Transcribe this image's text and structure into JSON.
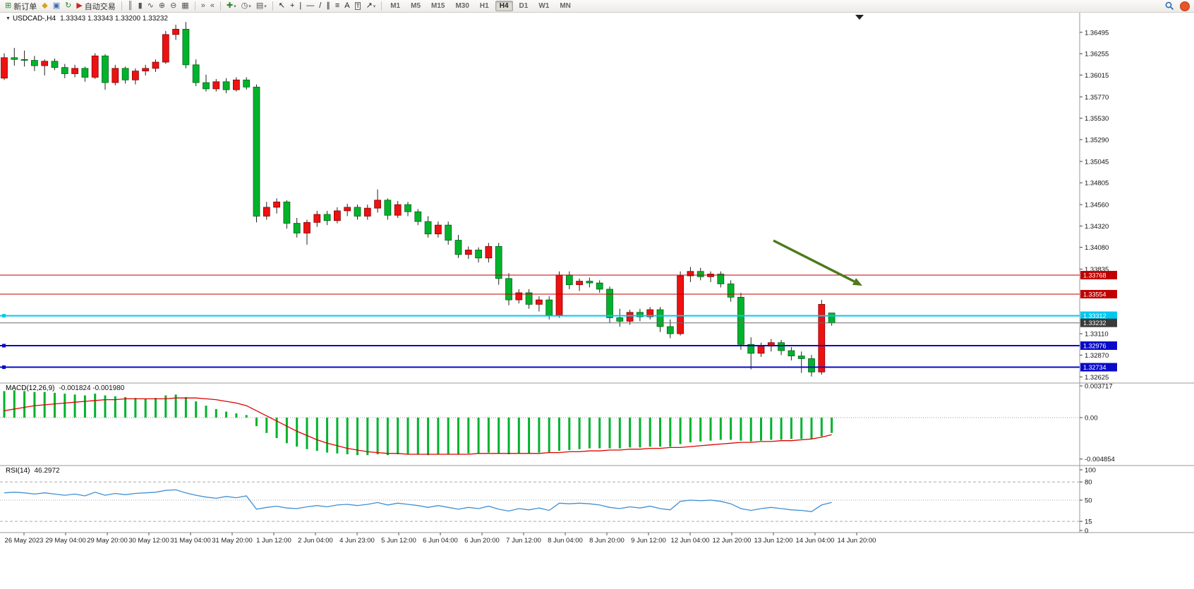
{
  "toolbar": {
    "buttons": [
      {
        "name": "new-order",
        "icon": "new-order-icon",
        "glyph": "⊞",
        "color": "#2e8b2e",
        "label": "新订单"
      },
      {
        "name": "alerts",
        "icon": "megaphone-icon",
        "glyph": "◆",
        "color": "#d9a21b"
      },
      {
        "name": "market-watch",
        "icon": "market-icon",
        "glyph": "▣",
        "color": "#3b6fb5"
      },
      {
        "name": "refresh",
        "icon": "refresh-icon",
        "glyph": "↻",
        "color": "#2e8b2e"
      },
      {
        "name": "autotrading",
        "icon": "autotrading-icon",
        "glyph": "▶",
        "color": "#c42b1c",
        "label": "自动交易",
        "sep_after": true
      },
      {
        "name": "chart-bars",
        "icon": "bars-chart-icon",
        "glyph": "║",
        "color": "#555"
      },
      {
        "name": "chart-candles",
        "icon": "candles-chart-icon",
        "glyph": "▮",
        "color": "#555"
      },
      {
        "name": "chart-line",
        "icon": "line-chart-icon",
        "glyph": "∿",
        "color": "#555"
      },
      {
        "name": "zoom-in",
        "icon": "zoom-in-icon",
        "glyph": "⊕",
        "color": "#555"
      },
      {
        "name": "zoom-out",
        "icon": "zoom-out-icon",
        "glyph": "⊖",
        "color": "#555"
      },
      {
        "name": "tile-windows",
        "icon": "tile-windows-icon",
        "glyph": "▦",
        "color": "#555",
        "sep_after": true
      },
      {
        "name": "auto-scroll",
        "icon": "auto-scroll-icon",
        "glyph": "»",
        "color": "#555"
      },
      {
        "name": "chart-shift",
        "icon": "chart-shift-icon",
        "glyph": "«",
        "color": "#555",
        "sep_after": true
      },
      {
        "name": "indicators",
        "icon": "add-indicator-icon",
        "glyph": "✚",
        "color": "#2e8b2e",
        "dropdown": true
      },
      {
        "name": "periods",
        "icon": "clock-icon",
        "glyph": "◷",
        "color": "#555",
        "dropdown": true
      },
      {
        "name": "templates",
        "icon": "template-icon",
        "glyph": "▤",
        "color": "#555",
        "dropdown": true,
        "sep_after": true
      },
      {
        "name": "cursor",
        "icon": "cursor-icon",
        "glyph": "↖",
        "color": "#222"
      },
      {
        "name": "crosshair",
        "icon": "crosshair-icon",
        "glyph": "+",
        "color": "#222"
      },
      {
        "name": "vertical-line",
        "icon": "vertical-line-icon",
        "glyph": "|",
        "color": "#222"
      },
      {
        "name": "horizontal-line",
        "icon": "horizontal-line-icon",
        "glyph": "—",
        "color": "#222"
      },
      {
        "name": "trendline",
        "icon": "trendline-icon",
        "glyph": "/",
        "color": "#222"
      },
      {
        "name": "channel",
        "icon": "channel-icon",
        "glyph": "∥",
        "color": "#222"
      },
      {
        "name": "fibonacci",
        "icon": "fibonacci-icon",
        "glyph": "≡",
        "color": "#222"
      },
      {
        "name": "text",
        "icon": "text-icon",
        "glyph": "A",
        "color": "#222"
      },
      {
        "name": "text-label",
        "icon": "label-icon",
        "glyph": "T",
        "color": "#222",
        "boxed": true
      },
      {
        "name": "arrows",
        "icon": "arrow-objects-icon",
        "glyph": "↗",
        "color": "#222",
        "dropdown": true,
        "sep_after": true
      }
    ]
  },
  "timeframes": {
    "items": [
      "M1",
      "M5",
      "M15",
      "M30",
      "H1",
      "H4",
      "D1",
      "W1",
      "MN"
    ],
    "active": "H4"
  },
  "main_chart": {
    "collapse_icon": "▼",
    "title": "USDCAD-,H4",
    "ohlc_text": "1.33343 1.33343 1.33200 1.33232"
  },
  "macd_panel": {
    "label": "MACD(12,26,9)",
    "values": "-0.001824 -0.001980"
  },
  "rsi_panel": {
    "label": "RSI(14)",
    "value": "46.2972"
  },
  "chart_data": [
    {
      "type": "candlestick",
      "symbol": "USDCAD",
      "timeframe": "H4",
      "title": "USDCAD-,H4 1.33343 1.33343 1.33200 1.33232",
      "bull_color": "#ee1111",
      "bear_color": "#00b32c",
      "wick_color": "#222222",
      "y_range": [
        1.3258,
        1.3662
      ],
      "ohlc": [
        [
          1.3598,
          1.3626,
          1.3596,
          1.3621
        ],
        [
          1.3621,
          1.3632,
          1.3612,
          1.3619
        ],
        [
          1.3619,
          1.3629,
          1.3611,
          1.3618
        ],
        [
          1.3618,
          1.3623,
          1.3606,
          1.3612
        ],
        [
          1.3612,
          1.3619,
          1.3601,
          1.3617
        ],
        [
          1.3617,
          1.362,
          1.3607,
          1.361
        ],
        [
          1.361,
          1.3614,
          1.3598,
          1.3603
        ],
        [
          1.3603,
          1.3613,
          1.3599,
          1.3609
        ],
        [
          1.3609,
          1.3611,
          1.3594,
          1.3599
        ],
        [
          1.3599,
          1.3626,
          1.3597,
          1.3623
        ],
        [
          1.3623,
          1.3625,
          1.3585,
          1.3593
        ],
        [
          1.3593,
          1.3613,
          1.359,
          1.3609
        ],
        [
          1.3609,
          1.3611,
          1.3592,
          1.3596
        ],
        [
          1.3596,
          1.3609,
          1.3591,
          1.3606
        ],
        [
          1.3606,
          1.3613,
          1.3601,
          1.3609
        ],
        [
          1.3609,
          1.3619,
          1.3605,
          1.3616
        ],
        [
          1.3616,
          1.3651,
          1.3614,
          1.3647
        ],
        [
          1.3647,
          1.3658,
          1.3641,
          1.3653
        ],
        [
          1.3653,
          1.3661,
          1.3609,
          1.3613
        ],
        [
          1.3613,
          1.3619,
          1.3589,
          1.3593
        ],
        [
          1.3593,
          1.3602,
          1.3583,
          1.3586
        ],
        [
          1.3586,
          1.3597,
          1.3583,
          1.3594
        ],
        [
          1.3594,
          1.3598,
          1.3581,
          1.3585
        ],
        [
          1.3585,
          1.3599,
          1.3583,
          1.3596
        ],
        [
          1.3596,
          1.3599,
          1.3585,
          1.3588
        ],
        [
          1.3588,
          1.3591,
          1.3436,
          1.3443
        ],
        [
          1.3443,
          1.3459,
          1.3439,
          1.3453
        ],
        [
          1.3453,
          1.3463,
          1.3446,
          1.3459
        ],
        [
          1.3459,
          1.3461,
          1.3429,
          1.3435
        ],
        [
          1.3435,
          1.3441,
          1.3419,
          1.3424
        ],
        [
          1.3424,
          1.3439,
          1.3411,
          1.3436
        ],
        [
          1.3436,
          1.3449,
          1.3431,
          1.3445
        ],
        [
          1.3445,
          1.3449,
          1.3433,
          1.3438
        ],
        [
          1.3438,
          1.3453,
          1.3435,
          1.3449
        ],
        [
          1.3449,
          1.3457,
          1.3443,
          1.3453
        ],
        [
          1.3453,
          1.3456,
          1.3439,
          1.3443
        ],
        [
          1.3443,
          1.3456,
          1.3439,
          1.3452
        ],
        [
          1.3452,
          1.3473,
          1.3447,
          1.3461
        ],
        [
          1.3461,
          1.3463,
          1.3439,
          1.3444
        ],
        [
          1.3444,
          1.346,
          1.3441,
          1.3456
        ],
        [
          1.3456,
          1.3459,
          1.3443,
          1.3448
        ],
        [
          1.3448,
          1.3451,
          1.3433,
          1.3437
        ],
        [
          1.3437,
          1.3443,
          1.3419,
          1.3423
        ],
        [
          1.3423,
          1.3437,
          1.3419,
          1.3433
        ],
        [
          1.3433,
          1.3437,
          1.3411,
          1.3416
        ],
        [
          1.3416,
          1.3422,
          1.3396,
          1.34
        ],
        [
          1.34,
          1.3409,
          1.3395,
          1.3405
        ],
        [
          1.3405,
          1.3408,
          1.3391,
          1.3396
        ],
        [
          1.3396,
          1.3413,
          1.3391,
          1.3409
        ],
        [
          1.3409,
          1.3413,
          1.3366,
          1.3373
        ],
        [
          1.3373,
          1.3379,
          1.3343,
          1.3349
        ],
        [
          1.3349,
          1.3361,
          1.3345,
          1.3357
        ],
        [
          1.3357,
          1.3361,
          1.3339,
          1.3344
        ],
        [
          1.3344,
          1.3353,
          1.3336,
          1.3349
        ],
        [
          1.3349,
          1.3353,
          1.3327,
          1.3332
        ],
        [
          1.3332,
          1.3381,
          1.3329,
          1.3377
        ],
        [
          1.3377,
          1.3381,
          1.3361,
          1.3366
        ],
        [
          1.3366,
          1.3373,
          1.3359,
          1.337
        ],
        [
          1.337,
          1.3374,
          1.3363,
          1.3368
        ],
        [
          1.3368,
          1.3371,
          1.3357,
          1.3361
        ],
        [
          1.3361,
          1.3364,
          1.3323,
          1.3329
        ],
        [
          1.3329,
          1.3339,
          1.3319,
          1.3325
        ],
        [
          1.3325,
          1.3338,
          1.3321,
          1.3335
        ],
        [
          1.3335,
          1.3339,
          1.3325,
          1.333
        ],
        [
          1.333,
          1.3341,
          1.3327,
          1.3338
        ],
        [
          1.3338,
          1.3341,
          1.3313,
          1.3319
        ],
        [
          1.3319,
          1.3327,
          1.3306,
          1.3311
        ],
        [
          1.3311,
          1.3381,
          1.3309,
          1.3376
        ],
        [
          1.3376,
          1.3386,
          1.3369,
          1.3381
        ],
        [
          1.3381,
          1.3385,
          1.3371,
          1.3375
        ],
        [
          1.3375,
          1.3381,
          1.3369,
          1.3378
        ],
        [
          1.3378,
          1.3381,
          1.3363,
          1.3367
        ],
        [
          1.3367,
          1.3371,
          1.3347,
          1.3352
        ],
        [
          1.3352,
          1.3357,
          1.3293,
          1.3299
        ],
        [
          1.3299,
          1.3307,
          1.3271,
          1.3289
        ],
        [
          1.3289,
          1.3301,
          1.3285,
          1.3297
        ],
        [
          1.3297,
          1.3305,
          1.3291,
          1.3301
        ],
        [
          1.3301,
          1.3304,
          1.3287,
          1.3292
        ],
        [
          1.3292,
          1.3296,
          1.3281,
          1.3286
        ],
        [
          1.3286,
          1.3291,
          1.3267,
          1.3283
        ],
        [
          1.3283,
          1.3287,
          1.3263,
          1.3268
        ],
        [
          1.3268,
          1.3349,
          1.3265,
          1.3344
        ],
        [
          1.33343,
          1.33343,
          1.332,
          1.33232
        ]
      ],
      "y_ticks": [
        "1.36495",
        "1.36255",
        "1.36015",
        "1.35770",
        "1.35530",
        "1.35290",
        "1.35045",
        "1.34805",
        "1.34560",
        "1.34320",
        "1.34080",
        "1.33835",
        "1.33110",
        "1.32870",
        "1.32625"
      ],
      "hlines": [
        {
          "price": 1.33768,
          "label": "1.33768",
          "color": "#c00000",
          "width": 1,
          "marker": false
        },
        {
          "price": 1.33554,
          "label": "1.33554",
          "color": "#c00000",
          "width": 1,
          "marker": false
        },
        {
          "price": 1.33312,
          "label": "1.33312",
          "color": "#00c8f0",
          "width": 2,
          "marker": true
        },
        {
          "price": 1.33232,
          "label": "1.33232",
          "color": "#6a6a6a",
          "tag_bg": "#3a3a3a",
          "width": 1,
          "marker": false
        },
        {
          "price": 1.32976,
          "label": "1.32976",
          "color": "#0a0ac8",
          "width": 2,
          "marker": true
        },
        {
          "price": 1.32734,
          "label": "1.32734",
          "color": "#0a0ac8",
          "width": 2,
          "marker": true
        }
      ],
      "x_labels": [
        "26 May 2023",
        "29 May 04:00",
        "29 May 20:00",
        "30 May 12:00",
        "31 May 04:00",
        "31 May 20:00",
        "1 Jun 12:00",
        "2 Jun 04:00",
        "4 Jun 23:00",
        "5 Jun 12:00",
        "6 Jun 04:00",
        "6 Jun 20:00",
        "7 Jun 12:00",
        "8 Jun 04:00",
        "8 Jun 20:00",
        "9 Jun 12:00",
        "12 Jun 04:00",
        "12 Jun 20:00",
        "13 Jun 12:00",
        "14 Jun 04:00",
        "14 Jun 20:00"
      ],
      "arrow_annotation": {
        "color": "#4c7a1d"
      }
    },
    {
      "type": "bar",
      "name": "MACD",
      "label": "MACD(12,26,9) -0.001824 -0.001980",
      "hist_color": "#00b32c",
      "signal_color": "#e00000",
      "y_ticks": [
        "0.003717",
        "0.00",
        "-0.004854"
      ],
      "histogram": [
        0.0031,
        0.0032,
        0.0031,
        0.003,
        0.003,
        0.0029,
        0.0028,
        0.0027,
        0.0026,
        0.0028,
        0.0026,
        0.0025,
        0.0024,
        0.0023,
        0.0022,
        0.0023,
        0.0026,
        0.0027,
        0.0024,
        0.0019,
        0.0014,
        0.001,
        0.0007,
        0.0005,
        0.0003,
        -0.001,
        -0.0018,
        -0.0024,
        -0.003,
        -0.0034,
        -0.0037,
        -0.0039,
        -0.0041,
        -0.0042,
        -0.0043,
        -0.0044,
        -0.0044,
        -0.0043,
        -0.0044,
        -0.0043,
        -0.0043,
        -0.0043,
        -0.0044,
        -0.0043,
        -0.0043,
        -0.0043,
        -0.0042,
        -0.0042,
        -0.0041,
        -0.0042,
        -0.0043,
        -0.0042,
        -0.0042,
        -0.0041,
        -0.0041,
        -0.0039,
        -0.0038,
        -0.0037,
        -0.0036,
        -0.0036,
        -0.0036,
        -0.0036,
        -0.0035,
        -0.0035,
        -0.0034,
        -0.0034,
        -0.0034,
        -0.0031,
        -0.0029,
        -0.0028,
        -0.0027,
        -0.0026,
        -0.0026,
        -0.0027,
        -0.0028,
        -0.0027,
        -0.0026,
        -0.0026,
        -0.0025,
        -0.0025,
        -0.0025,
        -0.0022,
        -0.0018
      ],
      "signal": [
        0.0008,
        0.001,
        0.0012,
        0.0014,
        0.0015,
        0.0016,
        0.0017,
        0.0018,
        0.0019,
        0.002,
        0.0021,
        0.0021,
        0.0022,
        0.0022,
        0.0022,
        0.0022,
        0.0022,
        0.0023,
        0.0023,
        0.0023,
        0.0022,
        0.0021,
        0.0019,
        0.0017,
        0.0014,
        0.0008,
        0.0002,
        -0.0004,
        -0.001,
        -0.0016,
        -0.0021,
        -0.0026,
        -0.003,
        -0.0033,
        -0.0036,
        -0.0038,
        -0.004,
        -0.0041,
        -0.0042,
        -0.0042,
        -0.0043,
        -0.0043,
        -0.0043,
        -0.0043,
        -0.0043,
        -0.0043,
        -0.0043,
        -0.0042,
        -0.0042,
        -0.0042,
        -0.0042,
        -0.0042,
        -0.0042,
        -0.0042,
        -0.0041,
        -0.0041,
        -0.004,
        -0.004,
        -0.0039,
        -0.0039,
        -0.0038,
        -0.0038,
        -0.0037,
        -0.0037,
        -0.0036,
        -0.0036,
        -0.0035,
        -0.0035,
        -0.0034,
        -0.0033,
        -0.0032,
        -0.0031,
        -0.003,
        -0.0029,
        -0.0029,
        -0.0028,
        -0.0028,
        -0.0027,
        -0.0027,
        -0.0026,
        -0.0025,
        -0.0023,
        -0.002
      ]
    },
    {
      "type": "line",
      "name": "RSI",
      "label": "RSI(14) 46.2972",
      "color": "#3f8fd4",
      "levels": [
        "100",
        "80",
        "50",
        "15",
        "0"
      ],
      "values": [
        62,
        63,
        62,
        60,
        62,
        60,
        58,
        60,
        57,
        63,
        58,
        61,
        59,
        61,
        62,
        63,
        66,
        67,
        62,
        58,
        55,
        53,
        56,
        54,
        57,
        35,
        38,
        40,
        37,
        36,
        39,
        41,
        39,
        42,
        43,
        41,
        43,
        46,
        42,
        45,
        43,
        41,
        38,
        41,
        38,
        35,
        38,
        36,
        40,
        35,
        32,
        36,
        34,
        37,
        33,
        45,
        44,
        45,
        44,
        42,
        38,
        36,
        39,
        37,
        40,
        36,
        34,
        48,
        50,
        49,
        50,
        48,
        44,
        36,
        33,
        36,
        38,
        36,
        34,
        33,
        31,
        42,
        46.3
      ]
    }
  ]
}
